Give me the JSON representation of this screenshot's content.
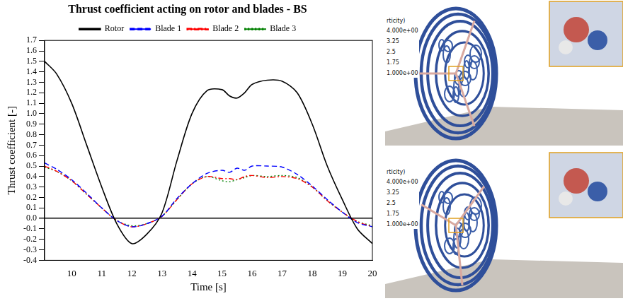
{
  "chart_data": {
    "type": "line",
    "title": "Thrust coefficient acting on rotor and blades - BS",
    "x_label": "Time [s]",
    "y_label": "Thrust coefficient [-]",
    "x": [
      9.1,
      9.5,
      10,
      10.5,
      11,
      11.5,
      12,
      12.5,
      13,
      13.5,
      14,
      14.5,
      15,
      15.25,
      15.5,
      15.75,
      16,
      16.5,
      17,
      17.5,
      18,
      18.5,
      19,
      19.5,
      20
    ],
    "series": [
      {
        "name": "Rotor",
        "color": "#000000",
        "line_style": "solid",
        "values": [
          1.5,
          1.38,
          1.1,
          0.7,
          0.3,
          -0.05,
          -0.24,
          -0.15,
          0.05,
          0.55,
          1.0,
          1.22,
          1.23,
          1.17,
          1.15,
          1.2,
          1.28,
          1.32,
          1.31,
          1.2,
          0.9,
          0.5,
          0.18,
          -0.1,
          -0.24
        ]
      },
      {
        "name": "Blade 1",
        "color": "#0000ff",
        "line_style": "dashed",
        "values": [
          0.53,
          0.47,
          0.37,
          0.24,
          0.1,
          -0.02,
          -0.08,
          -0.05,
          0.02,
          0.19,
          0.33,
          0.43,
          0.46,
          0.44,
          0.48,
          0.46,
          0.5,
          0.5,
          0.49,
          0.42,
          0.31,
          0.18,
          0.06,
          -0.04,
          -0.08
        ]
      },
      {
        "name": "Blade 2",
        "color": "#ff0000",
        "line_style": "dashdot",
        "values": [
          0.5,
          0.45,
          0.36,
          0.23,
          0.1,
          -0.02,
          -0.08,
          -0.05,
          0.02,
          0.18,
          0.33,
          0.4,
          0.38,
          0.38,
          0.37,
          0.4,
          0.41,
          0.39,
          0.4,
          0.38,
          0.3,
          0.17,
          0.06,
          -0.03,
          -0.08
        ]
      },
      {
        "name": "Blade 3",
        "color": "#008000",
        "line_style": "dotted",
        "values": [
          0.49,
          0.45,
          0.36,
          0.23,
          0.1,
          -0.02,
          -0.07,
          -0.05,
          0.02,
          0.18,
          0.33,
          0.4,
          0.36,
          0.35,
          0.37,
          0.39,
          0.41,
          0.4,
          0.41,
          0.39,
          0.3,
          0.17,
          0.06,
          -0.03,
          -0.07
        ]
      }
    ],
    "xlim": [
      9.1,
      20
    ],
    "xticks": [
      10,
      11,
      12,
      13,
      14,
      15,
      16,
      17,
      18,
      19,
      20
    ],
    "ylim": [
      -0.4,
      1.7
    ],
    "yticks": [
      -0.4,
      -0.3,
      -0.2,
      -0.1,
      {
        "value": 0,
        "label": "0.0"
      },
      0.1,
      0.2,
      0.3,
      0.4,
      0.5,
      0.6,
      0.7,
      0.8,
      0.9,
      {
        "value": 1,
        "label": "1.0"
      },
      1.1,
      1.2,
      1.3,
      1.4,
      1.5,
      1.6,
      1.7
    ],
    "grid": false,
    "legend": "top"
  },
  "renderings": [
    {
      "colorbar_title": "rticity)",
      "colorbar_labels": [
        "4.000e+00",
        "3.25",
        "2.5",
        "1.75",
        "1.000e+00"
      ]
    },
    {
      "colorbar_title": "rticity)",
      "colorbar_labels": [
        "4.000e+00",
        "3.25",
        "2.5",
        "1.75",
        "1.000e+00"
      ]
    }
  ]
}
